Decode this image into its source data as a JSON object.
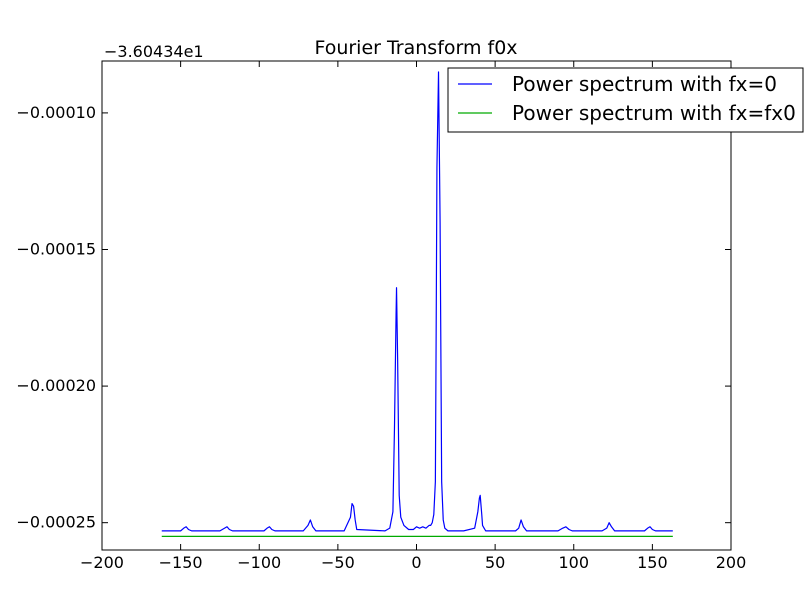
{
  "chart_data": {
    "type": "line",
    "title": "Fourier Transform f0x",
    "xlabel": "",
    "ylabel": "",
    "y_offset_label": "−3.60434e1",
    "xlim": [
      -200,
      200
    ],
    "ylim": [
      -0.00026,
      -8.1e-05
    ],
    "x_ticks": [
      -200,
      -150,
      -100,
      -50,
      0,
      50,
      100,
      150,
      200
    ],
    "x_tick_labels": [
      "−200",
      "−150",
      "−100",
      "−50",
      "0",
      "50",
      "100",
      "150",
      "200"
    ],
    "y_ticks": [
      -0.0001,
      -0.00015,
      -0.0002,
      -0.00025
    ],
    "y_tick_labels": [
      "−0.00010",
      "−0.00015",
      "−0.00020",
      "−0.00025"
    ],
    "grid": false,
    "legend_position": "top-right",
    "series": [
      {
        "name": "Power spectrum with fx=0",
        "color": "#0000ff",
        "x": [
          -162,
          -150,
          -148,
          -146.5,
          -145,
          -143,
          -125,
          -122,
          -120.5,
          -119,
          -117,
          -97,
          -95,
          -93.5,
          -92,
          -90,
          -72,
          -69,
          -67.5,
          -66,
          -64,
          -46,
          -42,
          -41,
          -40,
          -39,
          -38,
          -20,
          -17,
          -15,
          -14,
          -13,
          -12.7,
          -12,
          -11,
          -10,
          -8,
          -5,
          -2,
          0,
          2,
          4,
          6,
          8,
          9,
          10,
          11,
          12,
          12.5,
          13,
          14,
          15,
          16,
          17,
          18,
          20,
          22,
          30,
          37,
          39,
          40,
          40.5,
          41.5,
          42,
          43,
          44,
          46,
          63,
          65,
          66.5,
          68,
          70,
          90,
          93,
          95,
          97,
          99,
          118,
          121,
          122.5,
          124,
          126,
          145,
          147,
          148.5,
          150,
          152,
          163
        ],
        "y": [
          -0.000253,
          -0.000253,
          -0.000252,
          -0.0002515,
          -0.0002525,
          -0.000253,
          -0.000253,
          -0.000252,
          -0.0002515,
          -0.0002525,
          -0.000253,
          -0.000253,
          -0.000252,
          -0.0002515,
          -0.0002525,
          -0.000253,
          -0.000253,
          -0.000251,
          -0.000249,
          -0.0002515,
          -0.000253,
          -0.000253,
          -0.000248,
          -0.000243,
          -0.000244,
          -0.000249,
          -0.0002525,
          -0.000253,
          -0.000252,
          -0.000246,
          -0.000215,
          -0.000174,
          -0.000164,
          -0.00019,
          -0.00024,
          -0.000248,
          -0.000251,
          -0.0002525,
          -0.0002525,
          -0.0002515,
          -0.000252,
          -0.0002515,
          -0.000252,
          -0.000251,
          -0.000251,
          -0.00025,
          -0.000247,
          -0.000235,
          -0.00018,
          -0.00012,
          -8.5e-05,
          -0.00014,
          -0.000235,
          -0.000249,
          -0.000252,
          -0.000253,
          -0.000253,
          -0.000253,
          -0.000252,
          -0.000246,
          -0.000241,
          -0.00024,
          -0.000247,
          -0.000251,
          -0.000252,
          -0.000253,
          -0.000253,
          -0.000253,
          -0.000252,
          -0.000249,
          -0.0002515,
          -0.000253,
          -0.000253,
          -0.000252,
          -0.0002515,
          -0.0002525,
          -0.000253,
          -0.000253,
          -0.000252,
          -0.00025,
          -0.0002515,
          -0.000253,
          -0.000253,
          -0.000252,
          -0.0002515,
          -0.0002525,
          -0.000253,
          -0.000253
        ]
      },
      {
        "name": "Power spectrum with fx=fx0",
        "color": "#00aa00",
        "x": [
          -162,
          163
        ],
        "y": [
          -0.000255,
          -0.000255
        ]
      }
    ]
  }
}
